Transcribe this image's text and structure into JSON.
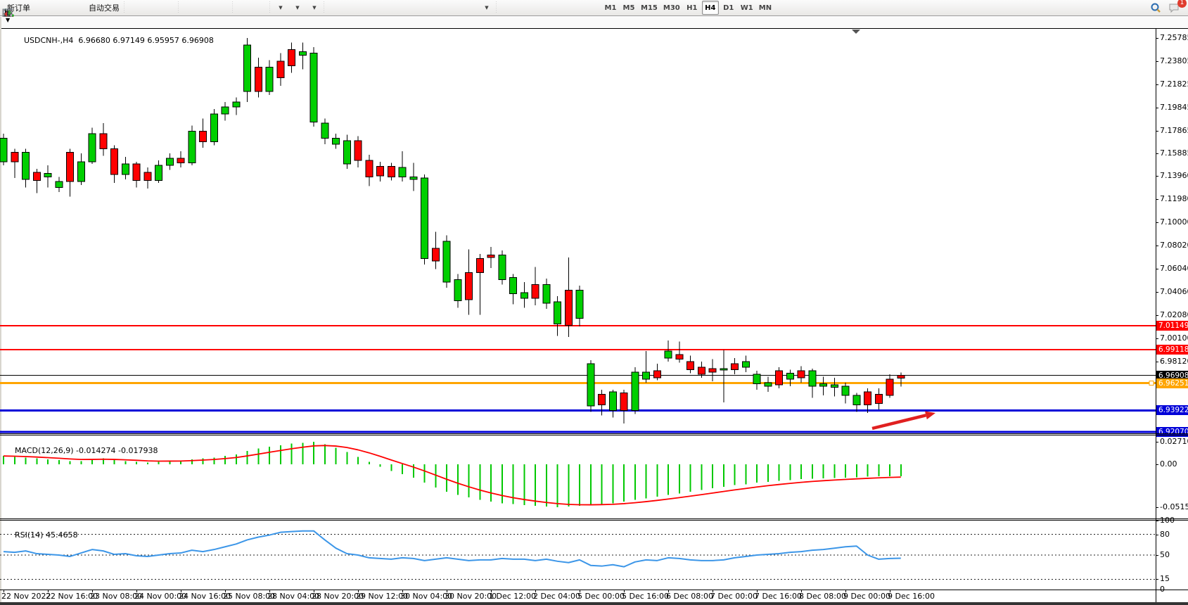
{
  "toolbar": {
    "new_order_label": "新订单",
    "auto_trading_label": "自动交易",
    "left_icons": [
      {
        "name": "new-order",
        "label": "新订单"
      },
      {
        "name": "profiles"
      },
      {
        "name": "market-watch"
      },
      {
        "name": "alerts"
      },
      {
        "name": "auto-trading",
        "label": "自动交易"
      },
      {
        "name": "bar-chart"
      },
      {
        "name": "candlestick-chart"
      },
      {
        "name": "line-chart"
      },
      {
        "name": "zoom-in"
      },
      {
        "name": "zoom-out"
      },
      {
        "name": "tile-windows"
      },
      {
        "name": "auto-scroll"
      },
      {
        "name": "chart-shift"
      },
      {
        "name": "indicators",
        "dropdown": true
      },
      {
        "name": "periods",
        "dropdown": true
      },
      {
        "name": "templates",
        "dropdown": true
      },
      {
        "name": "cursor"
      },
      {
        "name": "crosshair"
      },
      {
        "name": "vertical-line"
      },
      {
        "name": "horizontal-line"
      },
      {
        "name": "trend-line"
      },
      {
        "name": "equidistant-channel"
      },
      {
        "name": "fibonacci"
      },
      {
        "name": "text"
      },
      {
        "name": "text-label"
      },
      {
        "name": "arrows",
        "dropdown": true
      }
    ],
    "timeframes": [
      "M1",
      "M5",
      "M15",
      "M30",
      "H1",
      "H4",
      "D1",
      "W1",
      "MN"
    ],
    "active_timeframe": "H4",
    "notification_badge": "1"
  },
  "chart": {
    "symbol_title": "USDCNH-,H4",
    "ohlc_text": "6.96680 6.97149 6.95957 6.96908",
    "price_ticks": [
      {
        "label": "7.25785",
        "price": 7.25785
      },
      {
        "label": "7.23805",
        "price": 7.23805
      },
      {
        "label": "7.21825",
        "price": 7.21825
      },
      {
        "label": "7.19845",
        "price": 7.19845
      },
      {
        "label": "7.17865",
        "price": 7.17865
      },
      {
        "label": "7.15885",
        "price": 7.15885
      },
      {
        "label": "7.13960",
        "price": 7.1396
      },
      {
        "label": "7.11980",
        "price": 7.1198
      },
      {
        "label": "7.10000",
        "price": 7.1
      },
      {
        "label": "7.08020",
        "price": 7.0802
      },
      {
        "label": "7.06040",
        "price": 7.0604
      },
      {
        "label": "7.04060",
        "price": 7.0406
      },
      {
        "label": "7.02080",
        "price": 7.0208
      },
      {
        "label": "7.00100",
        "price": 7.001
      },
      {
        "label": "6.98120",
        "price": 6.9812
      }
    ],
    "level_lines": [
      {
        "price": 7.01149,
        "label": "7.01149",
        "color": "#FF0000",
        "width": 2
      },
      {
        "price": 6.99118,
        "label": "6.99118",
        "color": "#FF0000",
        "width": 2
      },
      {
        "price": 6.96908,
        "label": "6.96908",
        "color": "#000000",
        "width": 1
      },
      {
        "price": 6.96251,
        "label": "6.96251",
        "color": "#FFA500",
        "width": 3,
        "handle": true
      },
      {
        "price": 6.93922,
        "label": "6.93922",
        "color": "#0000D8",
        "width": 3
      },
      {
        "price": 6.9207,
        "label": "6.92070",
        "color": "#0000D8",
        "width": 3
      }
    ],
    "arrow_annotation": {
      "from": [
        1240,
        609
      ],
      "to": [
        1330,
        587
      ],
      "color": "#E02020"
    },
    "time_labels": [
      "22 Nov 2022",
      "22 Nov 16:00",
      "23 Nov 08:00",
      "24 Nov 00:00",
      "24 Nov 16:00",
      "25 Nov 08:00",
      "28 Nov 04:00",
      "28 Nov 20:00",
      "29 Nov 12:00",
      "30 Nov 04:00",
      "30 Nov 20:00",
      "1 Dec 12:00",
      "2 Dec 04:00",
      "5 Dec 00:00",
      "5 Dec 16:00",
      "6 Dec 08:00",
      "7 Dec 00:00",
      "7 Dec 16:00",
      "8 Dec 08:00",
      "9 Dec 00:00",
      "9 Dec 16:00"
    ]
  },
  "chart_data": {
    "type": "candlestick+macd+rsi",
    "symbol": "USDCNH",
    "period": "H4",
    "candles_ohlc": [
      [
        7.152,
        7.176,
        7.149,
        7.172,
        "g"
      ],
      [
        7.16,
        7.163,
        7.138,
        7.152,
        "r"
      ],
      [
        7.137,
        7.163,
        7.13,
        7.16,
        "g"
      ],
      [
        7.143,
        7.146,
        7.125,
        7.136,
        "r"
      ],
      [
        7.139,
        7.149,
        7.13,
        7.142,
        "g"
      ],
      [
        7.13,
        7.139,
        7.126,
        7.135,
        "g"
      ],
      [
        7.16,
        7.163,
        7.122,
        7.135,
        "r"
      ],
      [
        7.135,
        7.159,
        7.132,
        7.152,
        "g"
      ],
      [
        7.152,
        7.181,
        7.15,
        7.176,
        "g"
      ],
      [
        7.176,
        7.185,
        7.157,
        7.163,
        "r"
      ],
      [
        7.163,
        7.166,
        7.134,
        7.141,
        "r"
      ],
      [
        7.141,
        7.156,
        7.137,
        7.15,
        "g"
      ],
      [
        7.15,
        7.152,
        7.13,
        7.136,
        "r"
      ],
      [
        7.143,
        7.147,
        7.129,
        7.136,
        "r"
      ],
      [
        7.136,
        7.153,
        7.134,
        7.149,
        "g"
      ],
      [
        7.149,
        7.159,
        7.145,
        7.155,
        "g"
      ],
      [
        7.155,
        7.161,
        7.147,
        7.151,
        "r"
      ],
      [
        7.151,
        7.183,
        7.149,
        7.178,
        "g"
      ],
      [
        7.178,
        7.189,
        7.164,
        7.169,
        "r"
      ],
      [
        7.169,
        7.197,
        7.166,
        7.193,
        "g"
      ],
      [
        7.193,
        7.203,
        7.187,
        7.199,
        "g"
      ],
      [
        7.199,
        7.207,
        7.192,
        7.203,
        "g"
      ],
      [
        7.212,
        7.258,
        7.203,
        7.252,
        "g"
      ],
      [
        7.233,
        7.241,
        7.207,
        7.212,
        "r"
      ],
      [
        7.212,
        7.239,
        7.209,
        7.233,
        "g"
      ],
      [
        7.238,
        7.245,
        7.217,
        7.224,
        "r"
      ],
      [
        7.248,
        7.254,
        7.228,
        7.234,
        "r"
      ],
      [
        7.243,
        7.254,
        7.231,
        7.246,
        "g"
      ],
      [
        7.186,
        7.25,
        7.182,
        7.245,
        "g"
      ],
      [
        7.172,
        7.189,
        7.167,
        7.185,
        "g"
      ],
      [
        7.167,
        7.176,
        7.163,
        7.172,
        "g"
      ],
      [
        7.15,
        7.175,
        7.146,
        7.17,
        "g"
      ],
      [
        7.17,
        7.174,
        7.147,
        7.153,
        "r"
      ],
      [
        7.153,
        7.158,
        7.131,
        7.139,
        "r"
      ],
      [
        7.148,
        7.152,
        7.135,
        7.14,
        "r"
      ],
      [
        7.148,
        7.151,
        7.136,
        7.139,
        "r"
      ],
      [
        7.139,
        7.161,
        7.135,
        7.147,
        "g"
      ],
      [
        7.137,
        7.151,
        7.127,
        7.139,
        "g"
      ],
      [
        7.069,
        7.141,
        7.064,
        7.138,
        "g"
      ],
      [
        7.078,
        7.092,
        7.06,
        7.067,
        "r"
      ],
      [
        7.049,
        7.089,
        7.044,
        7.084,
        "g"
      ],
      [
        7.033,
        7.056,
        7.027,
        7.051,
        "g"
      ],
      [
        7.057,
        7.077,
        7.021,
        7.034,
        "r"
      ],
      [
        7.069,
        7.073,
        7.021,
        7.057,
        "r"
      ],
      [
        7.072,
        7.079,
        7.061,
        7.07,
        "r"
      ],
      [
        7.051,
        7.076,
        7.047,
        7.072,
        "g"
      ],
      [
        7.039,
        7.056,
        7.03,
        7.053,
        "g"
      ],
      [
        7.035,
        7.049,
        7.027,
        7.04,
        "g"
      ],
      [
        7.047,
        7.062,
        7.029,
        7.035,
        "r"
      ],
      [
        7.031,
        7.052,
        7.026,
        7.047,
        "g"
      ],
      [
        7.013,
        7.037,
        7.003,
        7.032,
        "g"
      ],
      [
        7.042,
        7.07,
        7.002,
        7.012,
        "r"
      ],
      [
        7.018,
        7.046,
        7.011,
        7.042,
        "g"
      ],
      [
        6.943,
        6.982,
        6.938,
        6.979,
        "g"
      ],
      [
        6.953,
        6.957,
        6.935,
        6.944,
        "r"
      ],
      [
        6.939,
        6.957,
        6.933,
        6.955,
        "g"
      ],
      [
        6.954,
        6.957,
        6.928,
        6.939,
        "r"
      ],
      [
        6.939,
        6.976,
        6.936,
        6.972,
        "g"
      ],
      [
        6.966,
        6.99,
        6.963,
        6.972,
        "g"
      ],
      [
        6.973,
        6.979,
        6.965,
        6.967,
        "r"
      ],
      [
        6.984,
        6.999,
        6.981,
        6.99,
        "g"
      ],
      [
        6.987,
        6.998,
        6.98,
        6.983,
        "r"
      ],
      [
        6.981,
        6.986,
        6.971,
        6.974,
        "r"
      ],
      [
        6.976,
        6.981,
        6.967,
        6.97,
        "r"
      ],
      [
        6.975,
        6.983,
        6.964,
        6.972,
        "r"
      ],
      [
        6.974,
        6.991,
        6.946,
        6.975,
        "g"
      ],
      [
        6.979,
        6.984,
        6.97,
        6.974,
        "r"
      ],
      [
        6.976,
        6.986,
        6.972,
        6.981,
        "g"
      ],
      [
        6.962,
        6.973,
        6.957,
        6.97,
        "g"
      ],
      [
        6.96,
        6.968,
        6.955,
        6.963,
        "g"
      ],
      [
        6.973,
        6.976,
        6.958,
        6.961,
        "r"
      ],
      [
        6.966,
        6.974,
        6.96,
        6.971,
        "g"
      ],
      [
        6.973,
        6.977,
        6.963,
        6.967,
        "r"
      ],
      [
        6.96,
        6.975,
        6.95,
        6.973,
        "g"
      ],
      [
        6.96,
        6.968,
        6.952,
        6.962,
        "g"
      ],
      [
        6.959,
        6.967,
        6.951,
        6.961,
        "g"
      ],
      [
        6.952,
        6.963,
        6.945,
        6.96,
        "g"
      ],
      [
        6.944,
        6.954,
        6.938,
        6.952,
        "g"
      ],
      [
        6.955,
        6.958,
        6.937,
        6.944,
        "r"
      ],
      [
        6.953,
        6.958,
        6.94,
        6.945,
        "r"
      ],
      [
        6.966,
        6.97,
        6.95,
        6.952,
        "r"
      ],
      [
        6.9668,
        6.97149,
        6.95957,
        6.96908,
        "r"
      ]
    ]
  },
  "macd": {
    "label": "MACD(12,26,9)",
    "main_value": "-0.014274",
    "signal_value": "-0.017938",
    "axis_labels": [
      {
        "label": "0.027103",
        "value": 0.027103
      },
      {
        "label": "0.00",
        "value": 0
      },
      {
        "label": "-0.051546",
        "value": -0.051546
      }
    ],
    "histogram": [
      0.01,
      0.009,
      0.008,
      0.007,
      0.006,
      0.005,
      0.004,
      0.004,
      0.006,
      0.007,
      0.005,
      0.004,
      0.003,
      0.002,
      0.003,
      0.004,
      0.004,
      0.006,
      0.007,
      0.008,
      0.01,
      0.012,
      0.016,
      0.019,
      0.021,
      0.023,
      0.025,
      0.026,
      0.0271,
      0.024,
      0.02,
      0.015,
      0.009,
      0.003,
      -0.003,
      -0.008,
      -0.012,
      -0.016,
      -0.022,
      -0.028,
      -0.033,
      -0.037,
      -0.04,
      -0.043,
      -0.045,
      -0.047,
      -0.048,
      -0.049,
      -0.05,
      -0.051,
      -0.0515,
      -0.051,
      -0.05,
      -0.049,
      -0.048,
      -0.047,
      -0.045,
      -0.043,
      -0.041,
      -0.039,
      -0.037,
      -0.035,
      -0.033,
      -0.031,
      -0.029,
      -0.027,
      -0.025,
      -0.024,
      -0.022,
      -0.021,
      -0.02,
      -0.019,
      -0.018,
      -0.0175,
      -0.017,
      -0.0165,
      -0.016,
      -0.0155,
      -0.015,
      -0.0145,
      -0.0143,
      -0.014274
    ],
    "histogram_color": "#00C800",
    "signal_color": "#FF0000"
  },
  "rsi": {
    "label": "RSI(14)",
    "value": "45.4658",
    "levels": [
      80,
      50,
      15
    ],
    "axis_labels": [
      {
        "label": "100",
        "value": 100
      },
      {
        "label": "80",
        "value": 80
      },
      {
        "label": "50",
        "value": 50
      },
      {
        "label": "15",
        "value": 15
      },
      {
        "label": "0",
        "value": 0
      }
    ],
    "values": [
      55,
      54,
      56,
      52,
      51,
      50,
      48,
      53,
      58,
      56,
      51,
      52,
      49,
      48,
      50,
      52,
      53,
      57,
      55,
      58,
      62,
      66,
      72,
      76,
      79,
      83,
      84,
      85,
      85,
      72,
      60,
      52,
      50,
      46,
      45,
      44,
      46,
      45,
      42,
      44,
      46,
      44,
      42,
      43,
      43,
      45,
      44,
      44,
      42,
      44,
      41,
      39,
      43,
      35,
      34,
      36,
      33,
      40,
      43,
      42,
      46,
      45,
      43,
      42,
      42,
      43,
      46,
      48,
      50,
      51,
      52,
      54,
      55,
      57,
      58,
      60,
      62,
      63,
      50,
      44,
      45,
      45.4658
    ],
    "line_color": "#3C96E8"
  },
  "colors": {
    "bull": "#00CF00",
    "bear": "#FF0000",
    "wick": "#000000",
    "badge_black": "#000000",
    "badge_red": "#FF0000",
    "badge_orange": "#FFA500",
    "badge_blue": "#0000D8"
  }
}
